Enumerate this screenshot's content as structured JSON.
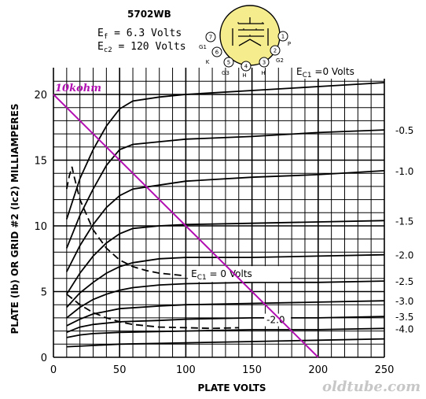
{
  "chart_data": {
    "type": "line",
    "title": "5702WB",
    "conditions": [
      {
        "sym": "E",
        "sub": "f",
        "text": " = 6.3 Volts"
      },
      {
        "sym": "E",
        "sub": "c2",
        "text": " = 120 Volts"
      }
    ],
    "xlabel": "PLATE VOLTS",
    "ylabel": "PLATE (Ib) OR GRID #2 (Ic2) MILLIAMPERES",
    "xlim": [
      0,
      250
    ],
    "ylim": [
      0,
      21.5
    ],
    "x_ticks": [
      "0",
      "50",
      "100",
      "150",
      "200",
      "250"
    ],
    "y_ticks": [
      "0",
      "5",
      "10",
      "15",
      "20"
    ],
    "grid": true,
    "plate_curves": [
      {
        "label": "=0 Volts",
        "label_prefix": "E",
        "label_sub": "C1",
        "points": [
          [
            10,
            10.5
          ],
          [
            20,
            13.6
          ],
          [
            30,
            15.8
          ],
          [
            40,
            17.6
          ],
          [
            50,
            18.9
          ],
          [
            60,
            19.5
          ],
          [
            80,
            19.8
          ],
          [
            100,
            20.0
          ],
          [
            150,
            20.3
          ],
          [
            200,
            20.6
          ],
          [
            250,
            20.9
          ]
        ]
      },
      {
        "label": "-0.5",
        "points": [
          [
            10,
            8.3
          ],
          [
            20,
            10.8
          ],
          [
            30,
            12.8
          ],
          [
            40,
            14.6
          ],
          [
            50,
            15.8
          ],
          [
            60,
            16.2
          ],
          [
            80,
            16.4
          ],
          [
            100,
            16.6
          ],
          [
            150,
            16.8
          ],
          [
            200,
            17.1
          ],
          [
            250,
            17.3
          ]
        ]
      },
      {
        "label": "-1.0",
        "points": [
          [
            10,
            6.5
          ],
          [
            20,
            8.5
          ],
          [
            30,
            10.1
          ],
          [
            40,
            11.4
          ],
          [
            50,
            12.3
          ],
          [
            60,
            12.8
          ],
          [
            80,
            13.1
          ],
          [
            100,
            13.4
          ],
          [
            150,
            13.7
          ],
          [
            200,
            13.9
          ],
          [
            250,
            14.2
          ]
        ]
      },
      {
        "label": "-1.5",
        "points": [
          [
            10,
            4.8
          ],
          [
            20,
            6.4
          ],
          [
            30,
            7.7
          ],
          [
            40,
            8.7
          ],
          [
            50,
            9.4
          ],
          [
            60,
            9.8
          ],
          [
            80,
            10.0
          ],
          [
            100,
            10.1
          ],
          [
            150,
            10.2
          ],
          [
            200,
            10.3
          ],
          [
            250,
            10.4
          ]
        ]
      },
      {
        "label": "-2.0",
        "points": [
          [
            10,
            3.8
          ],
          [
            20,
            4.9
          ],
          [
            30,
            5.7
          ],
          [
            40,
            6.4
          ],
          [
            50,
            6.9
          ],
          [
            60,
            7.2
          ],
          [
            80,
            7.5
          ],
          [
            100,
            7.6
          ],
          [
            150,
            7.6
          ],
          [
            200,
            7.7
          ],
          [
            250,
            7.8
          ]
        ]
      },
      {
        "label": "-2.5",
        "points": [
          [
            10,
            3.0
          ],
          [
            20,
            3.8
          ],
          [
            30,
            4.4
          ],
          [
            40,
            4.8
          ],
          [
            50,
            5.1
          ],
          [
            60,
            5.3
          ],
          [
            80,
            5.5
          ],
          [
            100,
            5.6
          ],
          [
            150,
            5.7
          ],
          [
            200,
            5.7
          ],
          [
            250,
            5.8
          ]
        ]
      },
      {
        "label": "-3.0",
        "points": [
          [
            10,
            2.4
          ],
          [
            20,
            2.9
          ],
          [
            30,
            3.3
          ],
          [
            40,
            3.5
          ],
          [
            50,
            3.7
          ],
          [
            80,
            3.9
          ],
          [
            100,
            4.0
          ],
          [
            150,
            4.1
          ],
          [
            200,
            4.2
          ],
          [
            250,
            4.3
          ]
        ]
      },
      {
        "label": "-3.5",
        "points": [
          [
            10,
            1.9
          ],
          [
            20,
            2.3
          ],
          [
            30,
            2.5
          ],
          [
            50,
            2.7
          ],
          [
            80,
            2.8
          ],
          [
            100,
            2.9
          ],
          [
            150,
            3.0
          ],
          [
            200,
            3.0
          ],
          [
            250,
            3.1
          ]
        ]
      },
      {
        "label": "-4.0",
        "points": [
          [
            10,
            1.5
          ],
          [
            20,
            1.7
          ],
          [
            30,
            1.8
          ],
          [
            50,
            1.9
          ],
          [
            100,
            2.0
          ],
          [
            150,
            2.1
          ],
          [
            200,
            2.1
          ],
          [
            250,
            2.2
          ]
        ]
      },
      {
        "label": "",
        "points": [
          [
            10,
            0.8
          ],
          [
            30,
            0.9
          ],
          [
            50,
            1.0
          ],
          [
            100,
            1.1
          ],
          [
            150,
            1.2
          ],
          [
            200,
            1.3
          ],
          [
            250,
            1.4
          ]
        ]
      }
    ],
    "screen_curves": [
      {
        "label": "= 0 Volts",
        "label_prefix": "E",
        "label_sub": "C1",
        "label_at": [
          104,
          6.1
        ],
        "points": [
          [
            10,
            12.8
          ],
          [
            12,
            13.8
          ],
          [
            14,
            14.5
          ],
          [
            15,
            14.0
          ],
          [
            20,
            12.0
          ],
          [
            30,
            9.7
          ],
          [
            40,
            8.3
          ],
          [
            50,
            7.4
          ],
          [
            60,
            6.9
          ],
          [
            70,
            6.6
          ],
          [
            80,
            6.4
          ],
          [
            90,
            6.3
          ],
          [
            100,
            6.2
          ]
        ]
      },
      {
        "label": "-2.0",
        "label_at": [
          161,
          2.6
        ],
        "points": [
          [
            10,
            4.8
          ],
          [
            15,
            4.4
          ],
          [
            20,
            4.0
          ],
          [
            30,
            3.4
          ],
          [
            40,
            3.0
          ],
          [
            50,
            2.7
          ],
          [
            60,
            2.5
          ],
          [
            80,
            2.3
          ],
          [
            100,
            2.25
          ],
          [
            120,
            2.2
          ],
          [
            140,
            2.25
          ]
        ]
      }
    ],
    "load_line": {
      "label": "10kohm",
      "points": [
        [
          0,
          20
        ],
        [
          200,
          0
        ]
      ]
    },
    "watermark": "oldtube.com",
    "tube_pins": [
      {
        "num": "7",
        "name": "G1"
      },
      {
        "num": "6",
        "name": "K"
      },
      {
        "num": "5",
        "name": "G3"
      },
      {
        "num": "4",
        "name": "H"
      },
      {
        "num": "3",
        "name": "H"
      },
      {
        "num": "2",
        "name": "G2"
      },
      {
        "num": "1",
        "name": "P"
      }
    ],
    "colors": {
      "load_line": "#b20fb2",
      "curves": "#000000",
      "grid": "#000000",
      "tube_fill": "#f5ec8e"
    }
  }
}
